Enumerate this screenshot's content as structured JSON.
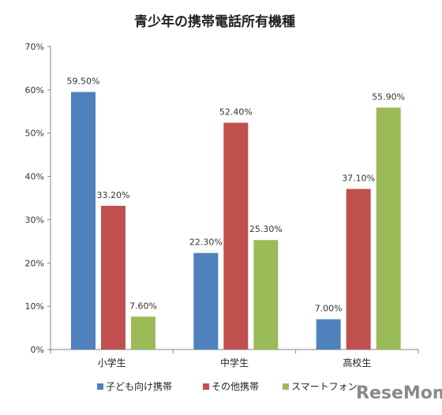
{
  "chart_data": {
    "type": "bar",
    "title": "青少年の携帯電話所有機種",
    "categories": [
      "小学生",
      "中学生",
      "高校生"
    ],
    "series": [
      {
        "name": "子ども向け携帯",
        "values": [
          59.5,
          22.3,
          7.0
        ],
        "labels": [
          "59.50%",
          "22.30%",
          "7.00%"
        ],
        "color": "#4F81BD"
      },
      {
        "name": "その他携帯",
        "values": [
          33.2,
          52.4,
          37.1
        ],
        "labels": [
          "33.20%",
          "52.40%",
          "37.10%"
        ],
        "color": "#C0504D"
      },
      {
        "name": "スマートフォン",
        "values": [
          7.6,
          25.3,
          55.9
        ],
        "labels": [
          "7.60%",
          "25.30%",
          "55.90%"
        ],
        "color": "#9BBB59"
      }
    ],
    "y_ticks": [
      0,
      10,
      20,
      30,
      40,
      50,
      60,
      70
    ],
    "y_tick_labels": [
      "0%",
      "10%",
      "20%",
      "30%",
      "40%",
      "50%",
      "60%",
      "70%"
    ],
    "ylim": [
      0,
      70
    ],
    "grid": false,
    "legend": "bottom",
    "xlabel": "",
    "ylabel": ""
  },
  "watermark": {
    "text": "ReseMom",
    "color": "#8a8a8a"
  }
}
